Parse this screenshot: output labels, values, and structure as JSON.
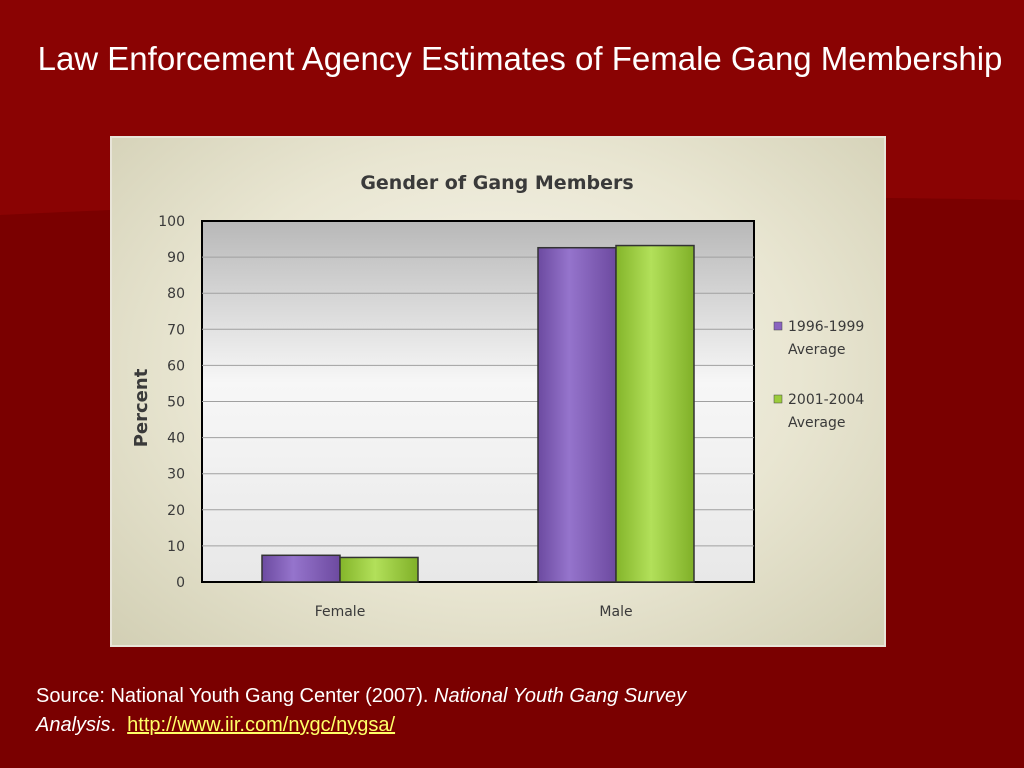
{
  "slide": {
    "title": "Law Enforcement Agency Estimates of Female Gang Membership",
    "background_color": "#7a0000",
    "source": {
      "prefix": "Source: National Youth Gang Center (2007). ",
      "italic_title": "National Youth Gang Survey Analysis",
      "suffix": ".",
      "link_text": "http://www.iir.com/nygc/nygsa/"
    }
  },
  "chart_data": {
    "type": "bar",
    "title": "Gender of Gang Members",
    "xlabel": "",
    "ylabel": "Percent",
    "ylim": [
      0,
      100
    ],
    "yticks": [
      0,
      10,
      20,
      30,
      40,
      50,
      60,
      70,
      80,
      90,
      100
    ],
    "categories": [
      "Female",
      "Male"
    ],
    "series": [
      {
        "name": "1996-1999 Average",
        "values": [
          7.4,
          92.6
        ],
        "color": "#8a63c0"
      },
      {
        "name": "2001-2004 Average",
        "values": [
          6.8,
          93.2
        ],
        "color": "#9ccc3c"
      }
    ],
    "grid": true,
    "legend_position": "right"
  }
}
